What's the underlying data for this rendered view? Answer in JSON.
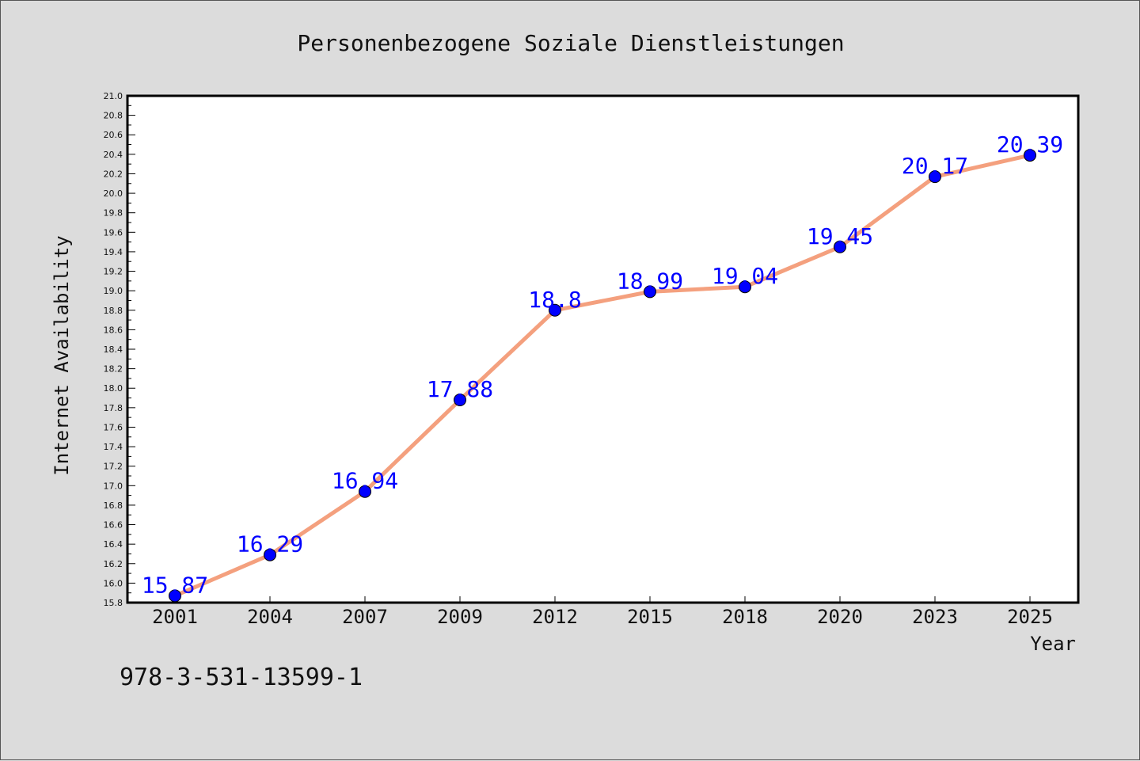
{
  "colors": {
    "background": "#dcdcdc",
    "plot_background": "#ffffff",
    "line": "#f4a07e",
    "marker": "#0000ff",
    "label": "#0000ff"
  },
  "footer_text": "978-3-531-13599-1",
  "chart_data": {
    "type": "line",
    "title": "Personenbezogene Soziale Dienstleistungen",
    "xlabel": "Year",
    "ylabel": "Internet Availability",
    "categories": [
      "2001",
      "2004",
      "2007",
      "2009",
      "2012",
      "2015",
      "2018",
      "2020",
      "2023",
      "2025"
    ],
    "values": [
      15.87,
      16.29,
      16.94,
      17.88,
      18.8,
      18.99,
      19.04,
      19.45,
      20.17,
      20.39
    ],
    "data_labels": [
      "15.87",
      "16.29",
      "16.94",
      "17.88",
      "18.8",
      "18.99",
      "19.04",
      "19.45",
      "20.17",
      "20.39"
    ],
    "ylim": [
      15.8,
      21.0
    ],
    "yticks": [
      "15.8",
      "16.0",
      "16.2",
      "16.4",
      "16.6",
      "16.8",
      "17.0",
      "17.2",
      "17.4",
      "17.6",
      "17.8",
      "18.0",
      "18.2",
      "18.4",
      "18.6",
      "18.8",
      "19.0",
      "19.2",
      "19.4",
      "19.6",
      "19.8",
      "20.0",
      "20.2",
      "20.4",
      "20.6",
      "20.8",
      "21.0"
    ],
    "grid": false,
    "legend": "none"
  }
}
